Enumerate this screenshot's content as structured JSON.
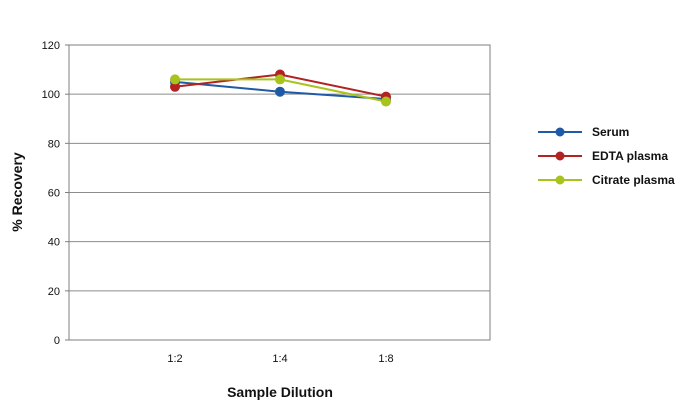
{
  "chart_data": {
    "type": "line",
    "xlabel": "Sample Dilution",
    "ylabel": "% Recovery",
    "categories": [
      "1:2",
      "1:4",
      "1:8"
    ],
    "ylim": [
      0,
      120
    ],
    "yticks": [
      "0",
      "20",
      "40",
      "60",
      "80",
      "100",
      "120"
    ],
    "grid": "horizontal",
    "legend_position": "right",
    "series": [
      {
        "name": "Serum",
        "color": "#1f5aa6",
        "values": [
          105,
          101,
          98
        ]
      },
      {
        "name": "EDTA plasma",
        "color": "#b22222",
        "values": [
          103,
          108,
          99
        ]
      },
      {
        "name": "Citrate plasma",
        "color": "#a8c31c",
        "values": [
          106,
          106,
          97
        ]
      }
    ]
  }
}
